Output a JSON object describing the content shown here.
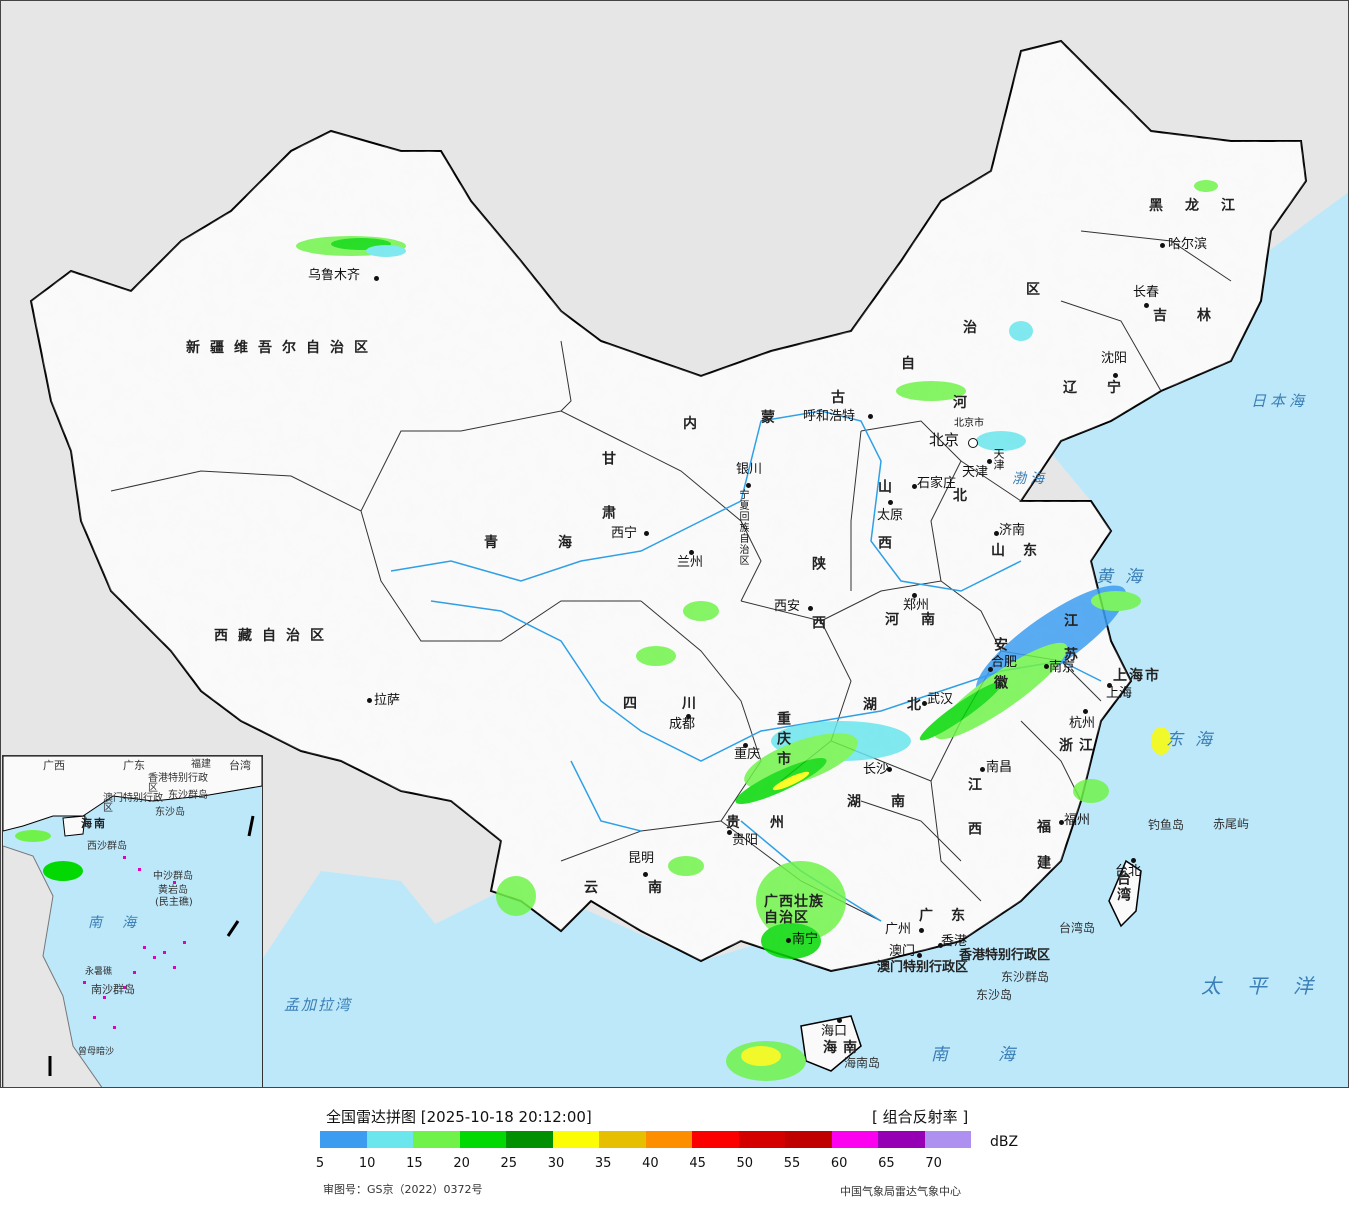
{
  "map": {
    "provinces": {
      "xinjiang": "新疆维吾尔自治区",
      "xizang": "西藏自治区",
      "qinghai": "青海",
      "gansu": "甘肃",
      "neimenggu_1": "内",
      "neimenggu_2": "蒙",
      "neimenggu_3": "古",
      "neimenggu_4": "自",
      "neimenggu_5": "治",
      "neimenggu_6": "区",
      "heilongjiang": "黑龙江",
      "jilin": "吉林",
      "liaoning": "辽宁",
      "hebei_1": "河",
      "hebei_2": "北",
      "shanxi": "山西",
      "shaanxi": "陕西",
      "ningxia": "宁夏回族自治区",
      "shandong": "山东",
      "henan": "河南",
      "sichuan": "四川",
      "chongqing": "重庆市",
      "hubei": "湖北",
      "anhui": "安徽",
      "jiangsu": "江苏",
      "shanghai": "上海市",
      "zhejiang": "浙江",
      "jiangxi": "江西",
      "hunan": "湖南",
      "guizhou": "贵州",
      "yunnan": "云南",
      "guangxi": "广西壮族自治区",
      "guangdong": "广东",
      "fujian": "福建",
      "taiwan": "台湾",
      "hainan": "海南",
      "hongkong_sar": "香港特别行政区",
      "macao_sar": "澳门特别行政区",
      "tianjin": "天津",
      "beijing_muni": "北京市"
    },
    "cities": {
      "urumqi": "乌鲁木齐",
      "lhasa": "拉萨",
      "xining": "西宁",
      "lanzhou": "兰州",
      "yinchuan": "银川",
      "hohhot": "呼和浩特",
      "harbin": "哈尔滨",
      "changchun": "长春",
      "shenyang": "沈阳",
      "beijing": "北京",
      "tianjin": "天津",
      "shijiazhuang": "石家庄",
      "taiyuan": "太原",
      "jinan": "济南",
      "zhengzhou": "郑州",
      "xian": "西安",
      "chengdu": "成都",
      "chongqing": "重庆",
      "wuhan": "武汉",
      "hefei": "合肥",
      "nanjing": "南京",
      "shanghai": "上海",
      "hangzhou": "杭州",
      "nanchang": "南昌",
      "changsha": "长沙",
      "guiyang": "贵阳",
      "kunming": "昆明",
      "nanning": "南宁",
      "guangzhou": "广州",
      "fuzhou": "福州",
      "taibei": "台北",
      "haikou": "海口",
      "hongkong": "香港",
      "macao": "澳门"
    },
    "seas": {
      "japan_sea": "日本海",
      "bohai": "渤海",
      "yellow_sea": "黄海",
      "east_sea": "东海",
      "south_sea": "南海",
      "pacific": "太平洋",
      "bengal": "孟加拉湾"
    },
    "islands": {
      "diaoyu": "钓鱼岛",
      "chiwei": "赤尾屿",
      "dongsha_islands": "东沙群岛",
      "dongsha_island": "东沙岛",
      "hainan_island": "海南岛",
      "taiwan_island": "台湾岛"
    },
    "inset": {
      "guangdong": "广东",
      "taiwan": "台湾",
      "guangxi": "广西",
      "fujian": "福建",
      "hongkong": "香港特别行政区",
      "macao": "澳门特别行政区",
      "dongsha": "东沙群岛",
      "dongsha_island": "东沙岛",
      "hainan": "海南",
      "xisha": "西沙群岛",
      "zhongsha": "中沙群岛",
      "huangyan": "黄岩岛",
      "huangyan_sub": "(民主礁)",
      "south_sea": "南海",
      "nansha": "南沙群岛",
      "yongshu": "永暑礁",
      "zengmu": "曾母暗沙"
    }
  },
  "legend": {
    "title": "全国雷达拼图 [2025-10-18 20:12:00]",
    "product": "[ 组合反射率 ]",
    "unit": "dBZ",
    "ticks": [
      "5",
      "10",
      "15",
      "20",
      "25",
      "30",
      "35",
      "40",
      "45",
      "50",
      "55",
      "60",
      "65",
      "70"
    ],
    "colors": [
      "#3c9cf0",
      "#6ae6ec",
      "#70f24a",
      "#02d802",
      "#019001",
      "#fcfc04",
      "#e6bf00",
      "#fc8e00",
      "#fc0000",
      "#d40000",
      "#c00000",
      "#fc00f0",
      "#9600b4",
      "#ad90f0"
    ],
    "review_number": "审图号：GS京（2022）0372号",
    "credit": "中国气象局雷达气象中心"
  }
}
